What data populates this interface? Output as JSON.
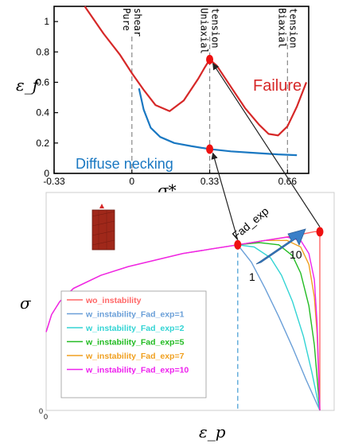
{
  "chart_data": [
    {
      "type": "line",
      "xlabel": "σ*",
      "ylabel": "ε_f",
      "xlim": [
        -0.33,
        0.75
      ],
      "ylim": [
        0,
        1.1
      ],
      "x_ticks": [
        "-0.33",
        "0",
        "0.33",
        "0.66"
      ],
      "x_tick_values": [
        -0.33,
        0,
        0.33,
        0.66
      ],
      "y_ticks": [
        "0",
        "0.2",
        "0.4",
        "0.6",
        "0.8",
        "1"
      ],
      "y_tick_values": [
        0,
        0.2,
        0.4,
        0.6,
        0.8,
        1.0
      ],
      "states": [
        {
          "label": "Pure shear",
          "x": 0.0
        },
        {
          "label": "Uniaxial tension",
          "x": 0.33
        },
        {
          "label": "Biaxial tension",
          "x": 0.66
        }
      ],
      "series": [
        {
          "name": "Failure",
          "color": "#d62828",
          "x": [
            -0.2,
            -0.12,
            -0.05,
            0.0,
            0.05,
            0.1,
            0.16,
            0.22,
            0.28,
            0.31,
            0.33,
            0.36,
            0.42,
            0.48,
            0.54,
            0.58,
            0.62,
            0.66,
            0.7,
            0.74
          ],
          "y": [
            1.1,
            0.92,
            0.78,
            0.66,
            0.55,
            0.45,
            0.41,
            0.48,
            0.62,
            0.7,
            0.75,
            0.71,
            0.57,
            0.43,
            0.32,
            0.26,
            0.25,
            0.31,
            0.44,
            0.6
          ]
        },
        {
          "name": "Diffuse necking",
          "color": "#1a78c2",
          "x": [
            0.03,
            0.05,
            0.08,
            0.12,
            0.18,
            0.25,
            0.33,
            0.42,
            0.52,
            0.62,
            0.7
          ],
          "y": [
            0.56,
            0.42,
            0.3,
            0.24,
            0.2,
            0.18,
            0.16,
            0.145,
            0.135,
            0.125,
            0.12
          ]
        }
      ],
      "markers": [
        {
          "x": 0.33,
          "y": 0.75
        },
        {
          "x": 0.33,
          "y": 0.16
        }
      ],
      "annotations": [
        "Failure",
        "Diffuse necking"
      ]
    },
    {
      "type": "line",
      "xlabel": "ε_p",
      "ylabel": "σ",
      "x_ticks": [
        "0"
      ],
      "y_ticks": [
        "0"
      ],
      "xlim": [
        0,
        1.0
      ],
      "ylim": [
        0,
        1.0
      ],
      "series": [
        {
          "name": "wo_instability",
          "color": "#ff6666",
          "x": [
            0,
            0.02,
            0.05,
            0.1,
            0.2,
            0.3,
            0.4,
            0.5,
            0.6,
            0.7,
            0.8,
            0.9,
            0.98,
            1.0,
            1.0
          ],
          "y": [
            0.36,
            0.44,
            0.5,
            0.56,
            0.62,
            0.66,
            0.69,
            0.72,
            0.74,
            0.76,
            0.78,
            0.8,
            0.82,
            0.82,
            0.0
          ]
        },
        {
          "name": "w_instability_Fad_exp=1",
          "color": "#6a9fd8",
          "x": [
            0.7,
            0.75,
            0.8,
            0.85,
            0.9,
            0.95,
            1.0
          ],
          "y": [
            0.76,
            0.68,
            0.56,
            0.43,
            0.29,
            0.14,
            0.0
          ]
        },
        {
          "name": "w_instability_Fad_exp=2",
          "color": "#33d4d4",
          "x": [
            0.7,
            0.76,
            0.82,
            0.86,
            0.9,
            0.94,
            0.97,
            1.0
          ],
          "y": [
            0.76,
            0.75,
            0.7,
            0.62,
            0.5,
            0.34,
            0.18,
            0.0
          ]
        },
        {
          "name": "w_instability_Fad_exp=5",
          "color": "#22bb22",
          "x": [
            0.7,
            0.78,
            0.85,
            0.9,
            0.93,
            0.96,
            0.98,
            1.0
          ],
          "y": [
            0.76,
            0.77,
            0.76,
            0.71,
            0.63,
            0.48,
            0.3,
            0.0
          ]
        },
        {
          "name": "w_instability_Fad_exp=7",
          "color": "#f0a020",
          "x": [
            0.7,
            0.8,
            0.88,
            0.93,
            0.96,
            0.98,
            0.99,
            1.0
          ],
          "y": [
            0.76,
            0.78,
            0.78,
            0.75,
            0.67,
            0.52,
            0.35,
            0.0
          ]
        },
        {
          "name": "w_instability_Fad_exp=10",
          "color": "#ee22ee",
          "x": [
            0,
            0.02,
            0.05,
            0.1,
            0.2,
            0.3,
            0.4,
            0.5,
            0.6,
            0.7,
            0.8,
            0.88,
            0.93,
            0.96,
            0.98,
            0.99,
            1.0
          ],
          "y": [
            0.36,
            0.44,
            0.5,
            0.56,
            0.62,
            0.66,
            0.69,
            0.72,
            0.74,
            0.76,
            0.78,
            0.795,
            0.78,
            0.72,
            0.6,
            0.4,
            0.0
          ]
        }
      ],
      "markers": [
        {
          "x": 0.7,
          "y": 0.76
        },
        {
          "x": 1.0,
          "y": 0.82
        }
      ],
      "annotations": [
        "Fad_exp",
        "1",
        "10"
      ]
    }
  ]
}
